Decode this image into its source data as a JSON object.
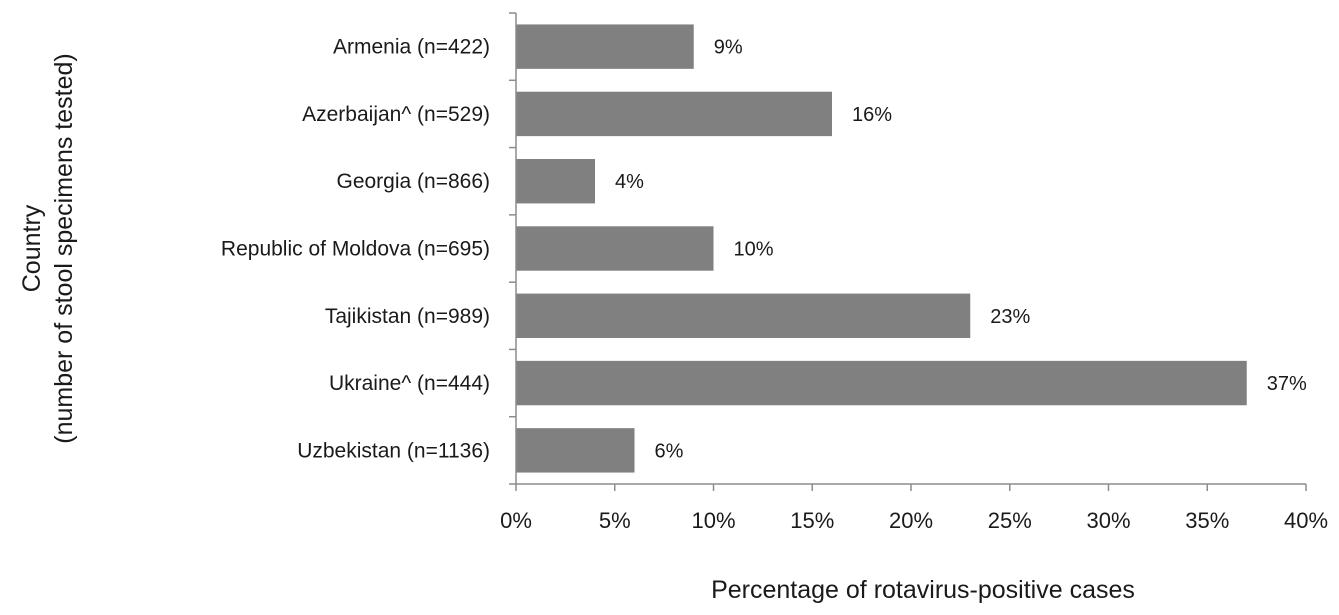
{
  "chart_data": {
    "type": "bar",
    "orientation": "horizontal",
    "categories": [
      "Armenia (n=422)",
      "Azerbaijan^ (n=529)",
      "Georgia (n=866)",
      "Republic of Moldova (n=695)",
      "Tajikistan (n=989)",
      "Ukraine^ (n=444)",
      "Uzbekistan (n=1136)"
    ],
    "values": [
      9,
      16,
      4,
      10,
      23,
      37,
      6
    ],
    "data_labels": [
      "9%",
      "16%",
      "4%",
      "10%",
      "23%",
      "37%",
      "6%"
    ],
    "xlim": [
      0,
      40
    ],
    "xticks": [
      0,
      5,
      10,
      15,
      20,
      25,
      30,
      35,
      40
    ],
    "xtick_labels": [
      "0%",
      "5%",
      "10%",
      "15%",
      "20%",
      "25%",
      "30%",
      "35%",
      "40%"
    ],
    "xlabel": "Percentage of rotavirus-positive  cases",
    "ylabel": [
      "Country",
      "(number of stool specimens tested)"
    ],
    "grid": false,
    "legend": "none",
    "bar_color": "#808080",
    "axis_color": "#8c8c8c"
  }
}
